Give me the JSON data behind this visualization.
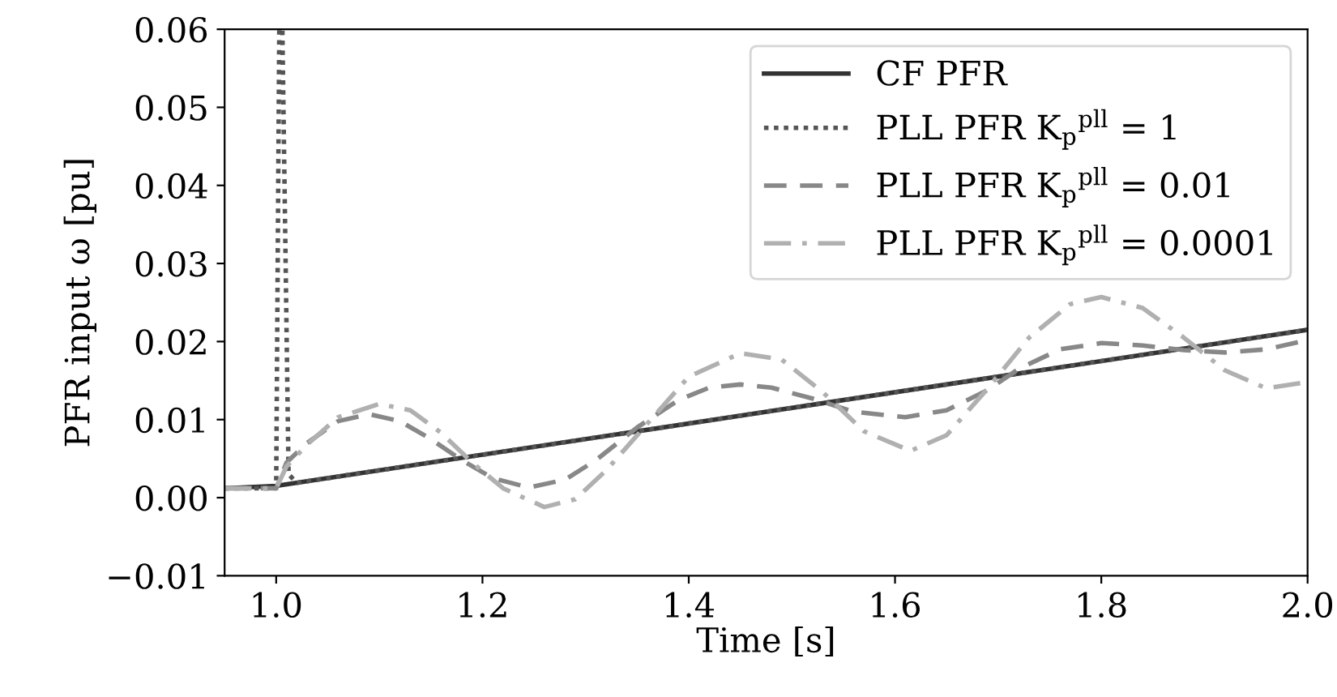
{
  "chart_data": {
    "type": "line",
    "xlabel": "Time [s]",
    "ylabel": "PFR input ω [pu]",
    "xlim": [
      0.95,
      2.0
    ],
    "xticks": [
      {
        "value": 1,
        "label": "1.0"
      },
      1.2,
      1.4,
      1.6,
      1.8,
      {
        "value": 2,
        "label": "2.0"
      }
    ],
    "ylim": [
      -0.01,
      0.06
    ],
    "yticks": [
      {
        "value": -0.01,
        "label": "−0.01"
      },
      {
        "value": 0,
        "label": "0.00"
      },
      {
        "value": 0.01,
        "label": "0.01"
      },
      {
        "value": 0.02,
        "label": "0.02"
      },
      {
        "value": 0.03,
        "label": "0.03"
      },
      {
        "value": 0.04,
        "label": "0.04"
      },
      {
        "value": 0.05,
        "label": "0.05"
      },
      {
        "value": 0.06,
        "label": "0.06"
      }
    ],
    "grid": false,
    "legend": "top right",
    "marker": "none",
    "series": [
      {
        "name": "CF PFR",
        "color": "#333333",
        "line_style": "solid",
        "x": [
          0.95,
          1.0,
          2.0
        ],
        "values": [
          0.0012,
          0.0015,
          0.0215
        ]
      },
      {
        "name": "PLL PFR K$_{p}$$^{pll}$ = 1",
        "color": "#555555",
        "line_style": "dotted",
        "x": [
          0.95,
          1.0,
          1.003,
          1.006,
          1.012,
          1.02,
          2.0
        ],
        "values": [
          0.0012,
          0.0012,
          0.06,
          0.06,
          0.003,
          0.0019,
          0.0215
        ]
      },
      {
        "name": "PLL PFR K$_{p}$$^{pll}$ = 0.01",
        "color": "#888888",
        "line_style": "dashed",
        "x": [
          0.95,
          1.0,
          1.01,
          1.03,
          1.06,
          1.09,
          1.12,
          1.15,
          1.18,
          1.21,
          1.245,
          1.28,
          1.31,
          1.35,
          1.39,
          1.42,
          1.45,
          1.48,
          1.52,
          1.56,
          1.61,
          1.65,
          1.69,
          1.72,
          1.76,
          1.8,
          1.84,
          1.88,
          1.92,
          1.96,
          2.0
        ],
        "values": [
          0.0012,
          0.0012,
          0.0045,
          0.007,
          0.0098,
          0.0107,
          0.0098,
          0.0075,
          0.0048,
          0.0025,
          0.0013,
          0.0023,
          0.0048,
          0.009,
          0.0125,
          0.0141,
          0.0145,
          0.0141,
          0.0127,
          0.011,
          0.0103,
          0.0112,
          0.0138,
          0.0165,
          0.019,
          0.0198,
          0.0195,
          0.0189,
          0.0186,
          0.019,
          0.0202
        ]
      },
      {
        "name": "PLL PFR K$_{p}$$^{pll}$ = 0.0001",
        "color": "#b0b0b0",
        "line_style": "dashdot",
        "x": [
          0.95,
          1.0,
          1.01,
          1.03,
          1.06,
          1.1,
          1.13,
          1.16,
          1.19,
          1.22,
          1.26,
          1.29,
          1.32,
          1.36,
          1.4,
          1.45,
          1.49,
          1.53,
          1.57,
          1.615,
          1.65,
          1.69,
          1.73,
          1.77,
          1.8,
          1.84,
          1.88,
          1.92,
          1.96,
          2.0
        ],
        "values": [
          0.0012,
          0.0012,
          0.004,
          0.0068,
          0.0103,
          0.012,
          0.0112,
          0.0083,
          0.0045,
          0.0012,
          -0.0012,
          -0.0002,
          0.0035,
          0.0095,
          0.0155,
          0.0185,
          0.0177,
          0.0135,
          0.0085,
          0.006,
          0.008,
          0.014,
          0.0205,
          0.0248,
          0.0257,
          0.0243,
          0.0205,
          0.0163,
          0.014,
          0.0148
        ]
      }
    ]
  }
}
